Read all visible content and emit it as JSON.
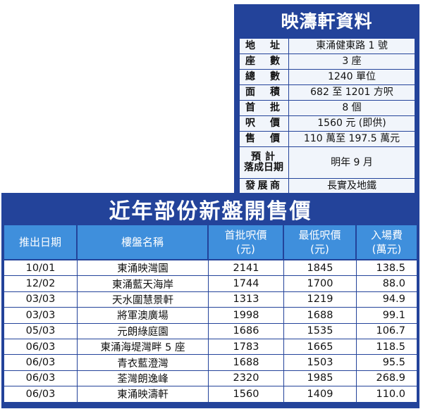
{
  "info": {
    "title": "映濤軒資料",
    "rows": [
      {
        "key": "地址",
        "value": "東涌健東路 1 號"
      },
      {
        "key": "座數",
        "value": "3 座"
      },
      {
        "key": "總數",
        "value": "1240 單位"
      },
      {
        "key": "面積",
        "value": "682 至 1201 方呎"
      },
      {
        "key": "首批",
        "value": "8 個"
      },
      {
        "key": "呎價",
        "value": "1560 元 (即供)"
      },
      {
        "key": "售價",
        "value": "110 萬至 197.5 萬元"
      },
      {
        "key_line1": "預計",
        "key_line2": "落成日期",
        "value": "明年 9 月"
      },
      {
        "key": "發展商",
        "value": "長實及地鐵"
      }
    ]
  },
  "sales": {
    "title": "近年部份新盤開售價",
    "headers": [
      {
        "line1": "推出日期",
        "line2": ""
      },
      {
        "line1": "樓盤名稱",
        "line2": ""
      },
      {
        "line1": "首批呎價",
        "line2": "(元)"
      },
      {
        "line1": "最低呎價",
        "line2": "(元)"
      },
      {
        "line1": "入場費",
        "line2": "(萬元)"
      }
    ],
    "rows": [
      {
        "date": "10/01",
        "name": "東涌映灣園",
        "first_price": "2141",
        "min_price": "1845",
        "entry": "138.5"
      },
      {
        "date": "12/02",
        "name": "東涌藍天海岸",
        "first_price": "1744",
        "min_price": "1700",
        "entry": "88.0"
      },
      {
        "date": "03/03",
        "name": "天水圍慧景軒",
        "first_price": "1313",
        "min_price": "1219",
        "entry": "94.9"
      },
      {
        "date": "03/03",
        "name": "將軍澳廣場",
        "first_price": "1998",
        "min_price": "1688",
        "entry": "99.1"
      },
      {
        "date": "05/03",
        "name": "元朗綠庭園",
        "first_price": "1686",
        "min_price": "1535",
        "entry": "106.7"
      },
      {
        "date": "06/03",
        "name": "東涌海堤灣畔 5 座",
        "first_price": "1783",
        "min_price": "1665",
        "entry": "118.5"
      },
      {
        "date": "06/03",
        "name": "青衣藍澄灣",
        "first_price": "1688",
        "min_price": "1503",
        "entry": "95.5"
      },
      {
        "date": "06/03",
        "name": "荃灣朗逸峰",
        "first_price": "2320",
        "min_price": "1985",
        "entry": "268.9"
      },
      {
        "date": "06/03",
        "name": "東涌映濤軒",
        "first_price": "1560",
        "min_price": "1409",
        "entry": "110.0"
      }
    ]
  }
}
